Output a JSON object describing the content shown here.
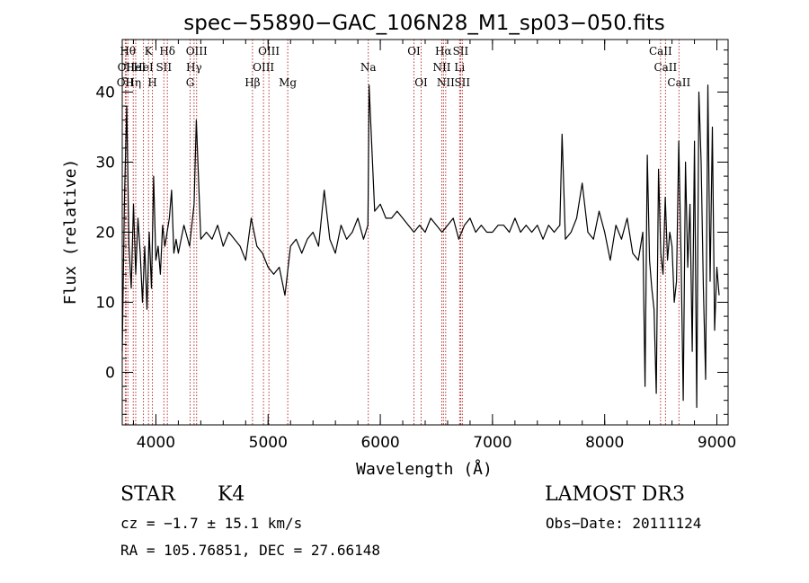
{
  "chart_data": {
    "type": "line",
    "title": "spec−55890−GAC_106N28_M1_sp03−050.fits",
    "xlabel": "Wavelength (Å)",
    "ylabel": "Flux (relative)",
    "xlim": [
      3700,
      9100
    ],
    "ylim": [
      -7.5,
      47.5
    ],
    "xticks": [
      4000,
      5000,
      6000,
      7000,
      8000,
      9000
    ],
    "xticks_minor_step": 200,
    "yticks": [
      0,
      10,
      20,
      30,
      40
    ],
    "yticks_minor_step": 2,
    "grid": false,
    "line_color": "#000000",
    "marker_color": "#b22222",
    "series": [
      {
        "x": [
          3700,
          3720,
          3740,
          3760,
          3780,
          3800,
          3820,
          3840,
          3860,
          3880,
          3900,
          3920,
          3940,
          3960,
          3980,
          4000,
          4020,
          4040,
          4060,
          4080,
          4100,
          4120,
          4140,
          4160,
          4180,
          4200,
          4250,
          4300,
          4340,
          4360,
          4400,
          4450,
          4500,
          4550,
          4600,
          4650,
          4700,
          4750,
          4800,
          4850,
          4900,
          4950,
          5000,
          5050,
          5100,
          5150,
          5200,
          5250,
          5300,
          5350,
          5400,
          5450,
          5500,
          5550,
          5600,
          5650,
          5700,
          5750,
          5800,
          5850,
          5890,
          5895,
          5900,
          5950,
          6000,
          6050,
          6100,
          6150,
          6200,
          6250,
          6300,
          6350,
          6400,
          6450,
          6500,
          6550,
          6600,
          6650,
          6700,
          6750,
          6800,
          6850,
          6900,
          6950,
          7000,
          7050,
          7100,
          7150,
          7200,
          7250,
          7300,
          7350,
          7400,
          7450,
          7500,
          7550,
          7600,
          7620,
          7650,
          7700,
          7750,
          7800,
          7850,
          7900,
          7950,
          8000,
          8050,
          8100,
          8150,
          8200,
          8250,
          8300,
          8340,
          8360,
          8380,
          8400,
          8420,
          8440,
          8460,
          8480,
          8500,
          8520,
          8540,
          8560,
          8580,
          8600,
          8620,
          8640,
          8660,
          8680,
          8700,
          8720,
          8740,
          8760,
          8780,
          8800,
          8820,
          8840,
          8860,
          8880,
          8900,
          8920,
          8940,
          8960,
          8980,
          9000,
          9020
        ],
        "y": [
          3,
          25,
          38,
          18,
          12,
          24,
          14,
          22,
          17,
          10,
          18,
          9,
          20,
          12,
          28,
          16,
          18,
          14,
          21,
          18,
          20,
          22,
          26,
          17,
          19,
          17,
          21,
          18,
          24,
          36,
          19,
          20,
          19,
          21,
          18,
          20,
          19,
          18,
          16,
          22,
          18,
          17,
          15,
          14,
          15,
          11,
          18,
          19,
          17,
          19,
          20,
          18,
          26,
          19,
          17,
          21,
          19,
          20,
          22,
          19,
          21,
          31,
          41,
          23,
          24,
          22,
          22,
          23,
          22,
          21,
          20,
          21,
          20,
          22,
          21,
          20,
          21,
          22,
          19,
          21,
          22,
          20,
          21,
          20,
          20,
          21,
          21,
          20,
          22,
          20,
          21,
          20,
          21,
          19,
          21,
          20,
          21,
          34,
          19,
          20,
          22,
          27,
          20,
          19,
          23,
          20,
          16,
          21,
          19,
          22,
          17,
          16,
          20,
          -2,
          31,
          16,
          12,
          9,
          -3,
          29,
          17,
          14,
          25,
          16,
          20,
          18,
          10,
          13,
          33,
          17,
          -4,
          30,
          15,
          24,
          3,
          33,
          -5,
          40,
          30,
          12,
          -1,
          41,
          13,
          35,
          6,
          15,
          11
        ]
      }
    ],
    "lines": [
      {
        "wl": 3727,
        "row": 2,
        "label": "OII"
      },
      {
        "wl": 3734,
        "row": 1,
        "label": "OII"
      },
      {
        "wl": 3750,
        "row": 0,
        "label": "Hθ"
      },
      {
        "wl": 3798,
        "row": 2,
        "label": "Hη"
      },
      {
        "wl": 3820,
        "row": 1,
        "label": "HeI"
      },
      {
        "wl": 3889,
        "row": 1,
        "label": "HeI"
      },
      {
        "wl": 3934,
        "row": 0,
        "label": "K"
      },
      {
        "wl": 3969,
        "row": 2,
        "label": "H"
      },
      {
        "wl": 4071,
        "row": 1,
        "label": "SII"
      },
      {
        "wl": 4102,
        "row": 0,
        "label": "Hδ"
      },
      {
        "wl": 4305,
        "row": 2,
        "label": "G"
      },
      {
        "wl": 4340,
        "row": 1,
        "label": "Hγ"
      },
      {
        "wl": 4363,
        "row": 0,
        "label": "OIII"
      },
      {
        "wl": 4861,
        "row": 2,
        "label": "Hβ"
      },
      {
        "wl": 4959,
        "row": 1,
        "label": "OIII"
      },
      {
        "wl": 5007,
        "row": 0,
        "label": "OIII"
      },
      {
        "wl": 5175,
        "row": 2,
        "label": "Mg"
      },
      {
        "wl": 5893,
        "row": 1,
        "label": "Na"
      },
      {
        "wl": 6300,
        "row": 0,
        "label": "OI"
      },
      {
        "wl": 6364,
        "row": 2,
        "label": "OI"
      },
      {
        "wl": 6548,
        "row": 1,
        "label": "NII"
      },
      {
        "wl": 6563,
        "row": 0,
        "label": "Hα"
      },
      {
        "wl": 6583,
        "row": 2,
        "label": "NII"
      },
      {
        "wl": 6707,
        "row": 1,
        "label": "Li"
      },
      {
        "wl": 6716,
        "row": 0,
        "label": "SII"
      },
      {
        "wl": 6731,
        "row": 2,
        "label": "SII"
      },
      {
        "wl": 8498,
        "row": 0,
        "label": "CaII"
      },
      {
        "wl": 8542,
        "row": 1,
        "label": "CaII"
      },
      {
        "wl": 8662,
        "row": 2,
        "label": "CaII"
      }
    ]
  },
  "info": {
    "class": "STAR",
    "subclass": "K4",
    "survey": "LAMOST DR3",
    "cz": "cz = −1.7 ± 15.1 km/s",
    "obsdate": "Obs−Date: 20111124",
    "radec": "RA = 105.76851, DEC =  27.66148"
  }
}
